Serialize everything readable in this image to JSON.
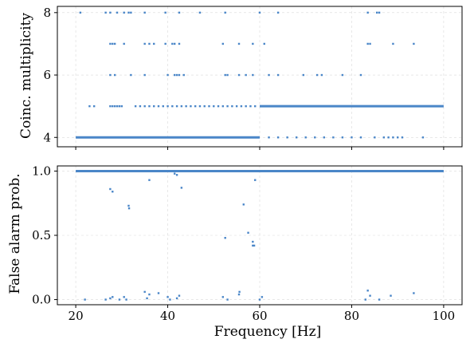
{
  "chart_data": [
    {
      "type": "scatter",
      "panel": "top",
      "xlabel": "",
      "ylabel": "Coinc. multiplicity",
      "xlim": [
        16,
        104
      ],
      "ylim": [
        3.7,
        8.2
      ],
      "yticks": [
        4,
        6,
        8
      ],
      "grid": true,
      "color": "#4a86c8",
      "dense_bands": [
        {
          "y": 4,
          "x_range": [
            20,
            60
          ]
        },
        {
          "y": 5,
          "x_range": [
            60,
            100
          ]
        }
      ],
      "series": [
        {
          "x": [
            21,
            26.5,
            27.5,
            29,
            30.5,
            31.5,
            32,
            35,
            39.5,
            42.5,
            47,
            52.5,
            60,
            64,
            83.5,
            85.5,
            86
          ],
          "y": [
            8,
            8,
            8,
            8,
            8,
            8,
            8,
            8,
            8,
            8,
            8,
            8,
            8,
            8,
            8,
            8,
            8
          ]
        },
        {
          "x": [
            27.5,
            28,
            28.5,
            30.5,
            35,
            36,
            37,
            39.5,
            41,
            41.5,
            42.5,
            52,
            55.5,
            58.5,
            61,
            83.5,
            84,
            89,
            93.5
          ],
          "y": [
            7,
            7,
            7,
            7,
            7,
            7,
            7,
            7,
            7,
            7,
            7,
            7,
            7,
            7,
            7,
            7,
            7,
            7,
            7
          ]
        },
        {
          "x": [
            27.5,
            28.5,
            32,
            35,
            40,
            41.5,
            42,
            42.5,
            43.5,
            52.5,
            53,
            55.5,
            57,
            58.5,
            62,
            64,
            69.5,
            72.5,
            73.5,
            78,
            82
          ],
          "y": [
            6,
            6,
            6,
            6,
            6,
            6,
            6,
            6,
            6,
            6,
            6,
            6,
            6,
            6,
            6,
            6,
            6,
            6,
            6,
            6,
            6
          ]
        },
        {
          "x": [
            23,
            24,
            27.5,
            28,
            28.5,
            29,
            29.5,
            30,
            33,
            34,
            35,
            36,
            37,
            38,
            39,
            40,
            41,
            42,
            43,
            44,
            45,
            46,
            47,
            48,
            49,
            50,
            51,
            52,
            53,
            54,
            55,
            56,
            57,
            58,
            59
          ],
          "y": [
            5,
            5,
            5,
            5,
            5,
            5,
            5,
            5,
            5,
            5,
            5,
            5,
            5,
            5,
            5,
            5,
            5,
            5,
            5,
            5,
            5,
            5,
            5,
            5,
            5,
            5,
            5,
            5,
            5,
            5,
            5,
            5,
            5,
            5,
            5
          ]
        },
        {
          "x": [
            62,
            64,
            66,
            68,
            70,
            72,
            74,
            76,
            78,
            80,
            82,
            85,
            87,
            88,
            89,
            90,
            91,
            95.5
          ],
          "y": [
            4,
            4,
            4,
            4,
            4,
            4,
            4,
            4,
            4,
            4,
            4,
            4,
            4,
            4,
            4,
            4,
            4,
            4
          ]
        }
      ]
    },
    {
      "type": "scatter",
      "panel": "bottom",
      "xlabel": "Frequency [Hz]",
      "ylabel": "False alarm prob.",
      "xlim": [
        16,
        104
      ],
      "ylim": [
        -0.04,
        1.04
      ],
      "xticks": [
        20,
        40,
        60,
        80,
        100
      ],
      "yticks": [
        0.0,
        0.5,
        1.0
      ],
      "ytick_labels": [
        "0.0",
        "0.5",
        "1.0"
      ],
      "grid": true,
      "color": "#4a86c8",
      "dense_bands": [
        {
          "y": 1.0,
          "x_range": [
            20,
            100
          ]
        }
      ],
      "series": [
        {
          "x": [
            27.5,
            28,
            31.5,
            31.6,
            36,
            41.5,
            42,
            43,
            56.5,
            57.5,
            58.5,
            58.8,
            59,
            52.5,
            58.5
          ],
          "y": [
            0.86,
            0.84,
            0.73,
            0.71,
            0.93,
            0.98,
            0.97,
            0.87,
            0.74,
            0.52,
            0.45,
            0.42,
            0.93,
            0.48,
            0.42
          ]
        },
        {
          "x": [
            22,
            26.5,
            27.5,
            28,
            29.5,
            30.5,
            31,
            35,
            35.5,
            36,
            38,
            40,
            40.5,
            42,
            42.5,
            52,
            53,
            55.5,
            55.6,
            60,
            60.5,
            83,
            83.5,
            84,
            86,
            88.5,
            93.5
          ],
          "y": [
            0.0,
            0.0,
            0.01,
            0.02,
            0.0,
            0.02,
            0.0,
            0.06,
            0.01,
            0.04,
            0.05,
            0.02,
            0.0,
            0.01,
            0.03,
            0.02,
            0.0,
            0.04,
            0.06,
            0.0,
            0.02,
            0.0,
            0.07,
            0.03,
            0.0,
            0.03,
            0.05
          ]
        }
      ]
    }
  ]
}
